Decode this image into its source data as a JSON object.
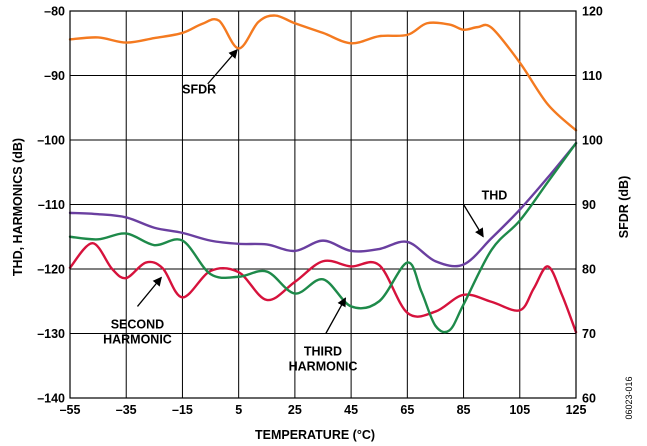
{
  "chart_data": {
    "type": "line",
    "xlabel": "TEMPERATURE (°C)",
    "ylabel_left": "THD, HARMONICS (dB)",
    "ylabel_right": "SFDR (dB)",
    "xlim": [
      -55,
      125
    ],
    "ylim_left": [
      -140,
      -80
    ],
    "ylim_right": [
      60,
      120
    ],
    "x_ticks": [
      -55,
      -35,
      -15,
      5,
      25,
      45,
      65,
      85,
      105,
      125
    ],
    "y_left_ticks": [
      -140,
      -130,
      -120,
      -110,
      -100,
      -90,
      -80
    ],
    "y_right_ticks": [
      60,
      70,
      80,
      90,
      100,
      110,
      120
    ],
    "x_tick_labels": [
      "–55",
      "–35",
      "–15",
      "5",
      "25",
      "45",
      "65",
      "85",
      "105",
      "125"
    ],
    "y_left_tick_labels": [
      "–140",
      "–130",
      "–120",
      "–110",
      "–100",
      "–90",
      "–80"
    ],
    "y_right_tick_labels": [
      "60",
      "70",
      "80",
      "90",
      "100",
      "110",
      "120"
    ],
    "grid": true,
    "figure_id": "06023-016",
    "series": [
      {
        "name": "SFDR",
        "color": "#f47a20",
        "axis": "right",
        "x": [
          -55,
          -45,
          -35,
          -25,
          -15,
          -8,
          -2,
          5,
          12,
          18,
          25,
          35,
          45,
          55,
          65,
          72,
          80,
          85,
          90,
          95,
          105,
          115,
          125
        ],
        "y": [
          115.6,
          115.9,
          115.1,
          115.8,
          116.6,
          118.0,
          118.5,
          114.2,
          118.3,
          119.3,
          118.1,
          116.6,
          115.0,
          116.1,
          116.3,
          118.1,
          117.9,
          117.1,
          117.5,
          117.4,
          112.0,
          105.5,
          101.5
        ]
      },
      {
        "name": "THD",
        "color": "#6a3fa0",
        "axis": "left",
        "x": [
          -55,
          -45,
          -35,
          -25,
          -15,
          -5,
          5,
          15,
          25,
          35,
          45,
          55,
          65,
          75,
          85,
          95,
          105,
          115,
          125
        ],
        "y": [
          -111.3,
          -111.5,
          -112.0,
          -113.6,
          -114.4,
          -115.6,
          -116.1,
          -116.2,
          -117.2,
          -115.6,
          -117.2,
          -116.9,
          -115.8,
          -118.8,
          -119.3,
          -115.2,
          -110.8,
          -105.8,
          -100.5
        ]
      },
      {
        "name": "SECOND HARMONIC",
        "color": "#d6123c",
        "axis": "left",
        "x": [
          -55,
          -47,
          -40,
          -35,
          -28,
          -22,
          -15,
          -5,
          5,
          15,
          25,
          35,
          45,
          55,
          65,
          75,
          85,
          95,
          105,
          110,
          115,
          120,
          125
        ],
        "y": [
          -119.8,
          -116.0,
          -120.0,
          -121.4,
          -119.0,
          -119.9,
          -124.4,
          -120.3,
          -120.5,
          -124.8,
          -122.0,
          -118.8,
          -119.6,
          -119.4,
          -126.8,
          -126.6,
          -124.0,
          -125.1,
          -126.4,
          -123.0,
          -119.6,
          -124.0,
          -129.8
        ]
      },
      {
        "name": "THIRD HARMONIC",
        "color": "#1e8a4a",
        "axis": "left",
        "x": [
          -55,
          -45,
          -35,
          -25,
          -15,
          -5,
          5,
          15,
          25,
          35,
          45,
          55,
          65,
          70,
          75,
          80,
          85,
          95,
          105,
          115,
          125
        ],
        "y": [
          -115.0,
          -115.4,
          -114.5,
          -116.3,
          -115.6,
          -120.8,
          -121.2,
          -120.4,
          -123.8,
          -121.6,
          -125.8,
          -125.0,
          -119.0,
          -123.5,
          -128.8,
          -129.5,
          -125.5,
          -117.0,
          -112.5,
          -106.5,
          -100.5
        ]
      }
    ],
    "annotations": [
      {
        "lines": [
          "SFDR"
        ],
        "anchor": "end",
        "text_x": -3,
        "text_y": -92.8
      },
      {
        "lines": [
          "THD"
        ],
        "anchor": "middle",
        "text_x": 96,
        "text_y": -109.2
      },
      {
        "lines": [
          "SECOND",
          "HARMONIC"
        ],
        "anchor": "middle",
        "text_x": -31,
        "text_y": -129.2
      },
      {
        "lines": [
          "THIRD",
          "HARMONIC"
        ],
        "anchor": "middle",
        "text_x": 35,
        "text_y": -133.4
      }
    ],
    "arrows": [
      {
        "x1": -6,
        "y1": -91.3,
        "x2": 4.5,
        "y2": -86.0
      },
      {
        "x1": 85,
        "y1": -110.0,
        "x2": 92,
        "y2": -115.0
      },
      {
        "x1": -31,
        "y1": -125.8,
        "x2": -22.5,
        "y2": -121.3
      },
      {
        "x1": 36,
        "y1": -130.0,
        "x2": 43,
        "y2": -124.5
      }
    ]
  }
}
